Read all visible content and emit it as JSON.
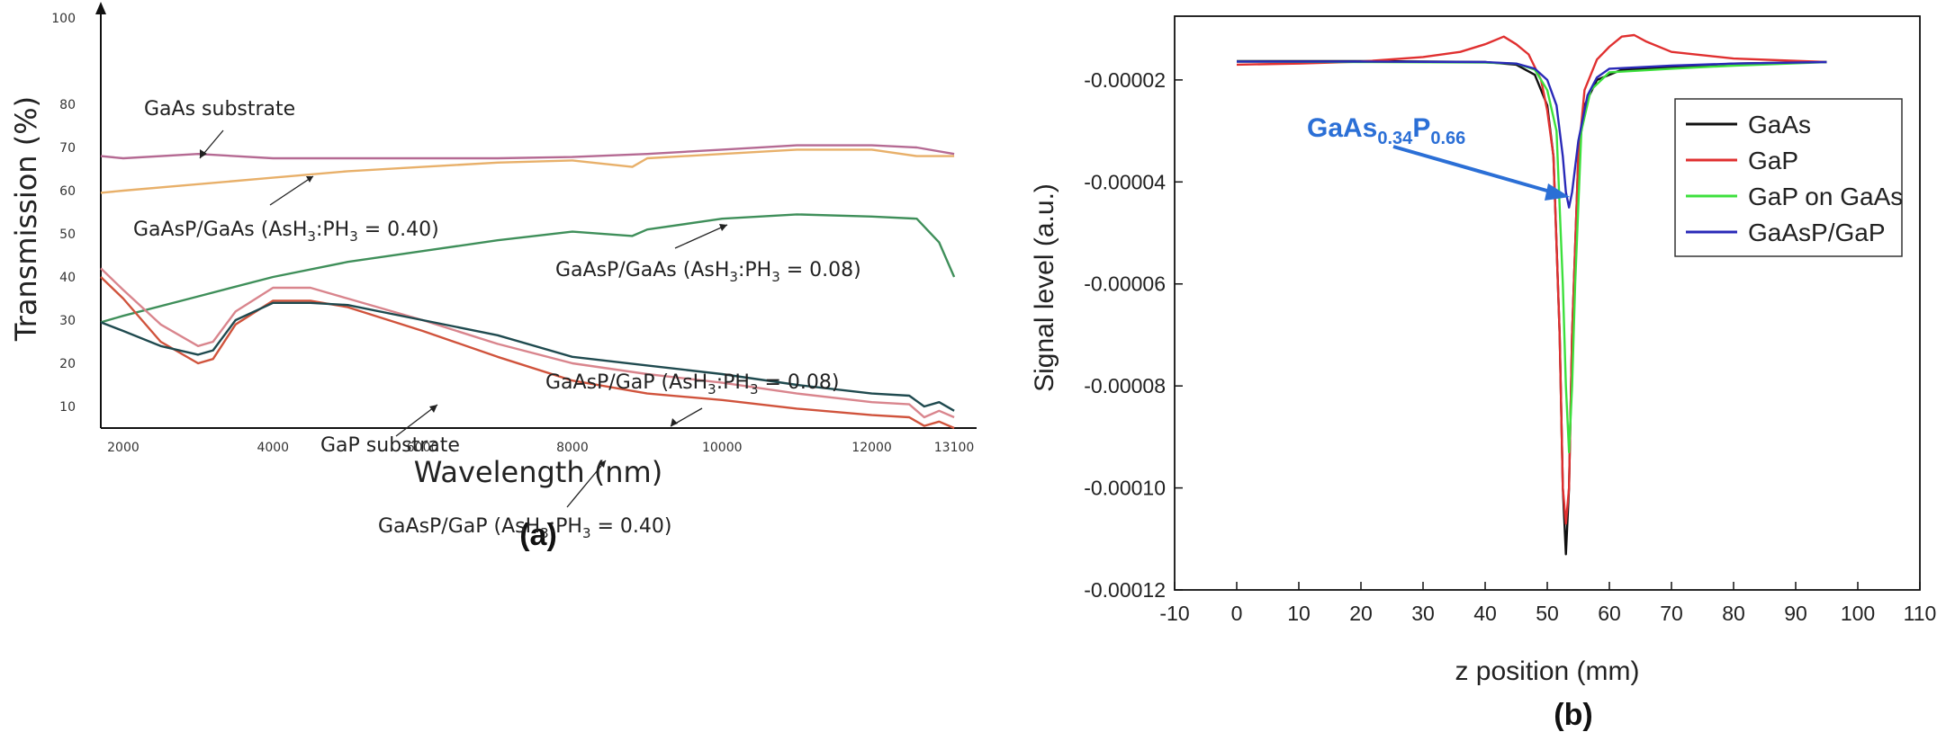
{
  "chart_data": [
    {
      "type": "line",
      "panel_label": "(a)",
      "xlabel": "Wavelength (nm)",
      "ylabel": "Transmission (%)",
      "xlim": [
        1700,
        13400
      ],
      "ylim": [
        5,
        100
      ],
      "x_ticks": [
        "2000",
        "4000",
        "6000",
        "8000",
        "10000",
        "12000",
        "13100"
      ],
      "x_tick_values": [
        2000,
        4000,
        6000,
        8000,
        10000,
        12000,
        13100
      ],
      "y_ticks": [
        "10",
        "20",
        "30",
        "40",
        "50",
        "60",
        "70",
        "80",
        "100"
      ],
      "y_tick_values": [
        10,
        20,
        30,
        40,
        50,
        60,
        70,
        80,
        100
      ],
      "series": [
        {
          "name": "GaAs substrate",
          "color": "#b56a93",
          "x": [
            1700,
            2000,
            3000,
            4000,
            5000,
            6000,
            7000,
            8000,
            9000,
            10000,
            11000,
            12000,
            12600,
            13100
          ],
          "y": [
            68,
            67.5,
            68.5,
            67.5,
            67.5,
            67.5,
            67.5,
            67.8,
            68.5,
            69.5,
            70.5,
            70.5,
            70,
            68.5
          ]
        },
        {
          "name": "GaAsP/GaAs (AsH3:PH3 = 0.40)",
          "color": "#e8b06a",
          "x": [
            1700,
            2000,
            3000,
            4000,
            5000,
            6000,
            7000,
            8000,
            8800,
            9000,
            10000,
            11000,
            12000,
            12600,
            13100
          ],
          "y": [
            59.5,
            60,
            61.5,
            63,
            64.5,
            65.5,
            66.5,
            67,
            65.5,
            67.5,
            68.5,
            69.5,
            69.5,
            68,
            68
          ]
        },
        {
          "name": "GaAsP/GaAs (AsH3:PH3 = 0.08)",
          "color": "#3f8f5a",
          "x": [
            1700,
            2000,
            3000,
            4000,
            5000,
            6000,
            7000,
            8000,
            8800,
            9000,
            10000,
            11000,
            12000,
            12600,
            12900,
            13100
          ],
          "y": [
            29.5,
            31,
            35.5,
            40,
            43.5,
            46,
            48.5,
            50.5,
            49.5,
            51,
            53.5,
            54.5,
            54,
            53.5,
            48,
            40
          ]
        },
        {
          "name": "GaP substrate",
          "color": "#d0533c",
          "x": [
            1700,
            2000,
            2500,
            3000,
            3200,
            3500,
            4000,
            4500,
            5000,
            6000,
            7000,
            8000,
            9000,
            10000,
            11000,
            12000,
            12500,
            12700,
            12900,
            13100
          ],
          "y": [
            40,
            35,
            25,
            20,
            21,
            29,
            34.5,
            34.5,
            33,
            27.5,
            21.5,
            16,
            13,
            11.5,
            9.5,
            8,
            7.5,
            5.5,
            6.5,
            5
          ]
        },
        {
          "name": "GaAsP/GaP (AsH3:PH3 = 0.40)",
          "color": "#d9858d",
          "x": [
            1700,
            2000,
            2500,
            3000,
            3200,
            3500,
            4000,
            4500,
            5000,
            6000,
            7000,
            8000,
            9000,
            10000,
            11000,
            12000,
            12500,
            12700,
            12900,
            13100
          ],
          "y": [
            42,
            37,
            29,
            24,
            25,
            32,
            37.5,
            37.5,
            35,
            30,
            24.5,
            20,
            17.5,
            15.5,
            13,
            11,
            10.5,
            7.5,
            9,
            7.5
          ]
        },
        {
          "name": "GaAsP/GaP (AsH3:PH3 = 0.08)",
          "color": "#1f4a4f",
          "x": [
            1700,
            2000,
            2500,
            3000,
            3200,
            3500,
            4000,
            4500,
            5000,
            6000,
            7000,
            8000,
            9000,
            10000,
            11000,
            12000,
            12500,
            12700,
            12900,
            13100
          ],
          "y": [
            29.5,
            27.5,
            24,
            22,
            23,
            30,
            34,
            34,
            33.5,
            30,
            26.5,
            21.5,
            19.5,
            17.5,
            15,
            13,
            12.5,
            10,
            11,
            9
          ]
        }
      ],
      "annotations": {
        "gaas_sub": "GaAs substrate",
        "gaasp_gaas_040_pre": "GaAsP/GaAs (AsH",
        "gaasp_gaas_040_mid": ":PH",
        "gaasp_gaas_040_post": " = 0.40)",
        "gaasp_gaas_008_pre": "GaAsP/GaAs (AsH",
        "gaasp_gaas_008_mid": ":PH",
        "gaasp_gaas_008_post": " = 0.08)",
        "gaasp_gap_008_pre": "GaAsP/GaP (AsH",
        "gaasp_gap_008_mid": ":PH",
        "gaasp_gap_008_post": " = 0.08)",
        "gap_sub": "GaP substrate",
        "gaasp_gap_040_pre": "GaAsP/GaP (AsH",
        "gaasp_gap_040_mid": ":PH",
        "gaasp_gap_040_post": " = 0.40)",
        "sub3": "3"
      }
    },
    {
      "type": "line",
      "panel_label": "(b)",
      "xlabel": "z position (mm)",
      "ylabel": "Signal level (a.u.)",
      "xlim": [
        -10,
        110
      ],
      "ylim": [
        -0.00012,
        -7.5e-06
      ],
      "x_ticks": [
        "-10",
        "0",
        "10",
        "20",
        "30",
        "40",
        "50",
        "60",
        "70",
        "80",
        "90",
        "100",
        "110"
      ],
      "x_tick_values": [
        -10,
        0,
        10,
        20,
        30,
        40,
        50,
        60,
        70,
        80,
        90,
        100,
        110
      ],
      "y_ticks": [
        "-0.00002",
        "-0.00004",
        "-0.00006",
        "-0.00008",
        "-0.00010",
        "-0.00012"
      ],
      "y_tick_values": [
        -2e-05,
        -4e-05,
        -6e-05,
        -8e-05,
        -0.0001,
        -0.00012
      ],
      "legend_position": "top-right",
      "series": [
        {
          "name": "GaAs",
          "color": "#111111",
          "x": [
            0,
            20,
            40,
            45,
            48,
            50,
            51,
            52,
            52.5,
            53,
            53.5,
            54,
            55,
            56,
            58,
            62,
            70,
            80,
            95
          ],
          "y": [
            -1.63e-05,
            -1.63e-05,
            -1.65e-05,
            -1.7e-05,
            -1.9e-05,
            -2.5e-05,
            -3.5e-05,
            -7e-05,
            -0.0001,
            -0.000113,
            -0.0001,
            -7e-05,
            -3.5e-05,
            -2.5e-05,
            -2e-05,
            -1.8e-05,
            -1.75e-05,
            -1.68e-05,
            -1.65e-05
          ]
        },
        {
          "name": "GaP",
          "color": "#e03030",
          "x": [
            0,
            10,
            20,
            30,
            36,
            40,
            43,
            45,
            47,
            49,
            50,
            51,
            52,
            52.5,
            53,
            53.5,
            54,
            55,
            56,
            58,
            60,
            62,
            64,
            66,
            70,
            80,
            95
          ],
          "y": [
            -1.7e-05,
            -1.68e-05,
            -1.64e-05,
            -1.55e-05,
            -1.45e-05,
            -1.3e-05,
            -1.15e-05,
            -1.3e-05,
            -1.5e-05,
            -2e-05,
            -2.6e-05,
            -3.5e-05,
            -7e-05,
            -0.0001,
            -0.000107,
            -0.0001,
            -7e-05,
            -3.5e-05,
            -2.2e-05,
            -1.6e-05,
            -1.35e-05,
            -1.15e-05,
            -1.12e-05,
            -1.25e-05,
            -1.45e-05,
            -1.58e-05,
            -1.65e-05
          ]
        },
        {
          "name": "GaP on GaAs",
          "color": "#3de03d",
          "x": [
            0,
            20,
            40,
            45,
            48,
            50,
            51.5,
            52.5,
            53,
            53.5,
            54,
            54.5,
            55.5,
            57,
            60,
            70,
            80,
            95
          ],
          "y": [
            -1.64e-05,
            -1.65e-05,
            -1.66e-05,
            -1.68e-05,
            -1.8e-05,
            -2.2e-05,
            -3e-05,
            -6e-05,
            -8e-05,
            -9.3e-05,
            -8e-05,
            -6e-05,
            -3e-05,
            -2.2e-05,
            -1.85e-05,
            -1.78e-05,
            -1.72e-05,
            -1.65e-05
          ]
        },
        {
          "name": "GaAsP/GaP",
          "color": "#2a2ab8",
          "x": [
            0,
            20,
            40,
            45,
            48,
            50,
            51.5,
            52.5,
            53,
            53.5,
            54,
            55,
            56.5,
            58,
            60,
            70,
            80,
            95
          ],
          "y": [
            -1.64e-05,
            -1.64e-05,
            -1.65e-05,
            -1.68e-05,
            -1.78e-05,
            -2e-05,
            -2.5e-05,
            -3.5e-05,
            -4.2e-05,
            -4.5e-05,
            -4.2e-05,
            -3.2e-05,
            -2.3e-05,
            -1.95e-05,
            -1.78e-05,
            -1.72e-05,
            -1.68e-05,
            -1.65e-05
          ]
        }
      ],
      "callout": {
        "main": "GaAs",
        "sub1": "0.34",
        "mid": "P",
        "sub2": "0.66",
        "color": "#2b6fd6"
      }
    }
  ]
}
